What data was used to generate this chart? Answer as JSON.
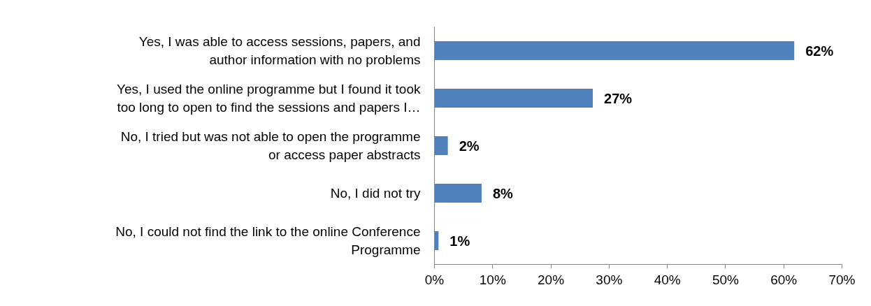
{
  "chart_data": {
    "type": "bar",
    "orientation": "horizontal",
    "categories": [
      "Yes, I was able to access sessions, papers, and\nauthor information with no problems",
      "Yes, I used the online programme but I found it took\ntoo long to open to find the sessions and papers I…",
      "No, I tried but was not able to open the programme\nor access paper abstracts",
      "No, I did not try",
      "No, I could not find the link to the online Conference\nProgramme"
    ],
    "values": [
      61.8,
      27.2,
      2.3,
      8.1,
      0.7
    ],
    "value_labels": [
      "62%",
      "27%",
      "2%",
      "8%",
      "1%"
    ],
    "color": "#4f81bd",
    "xlim": [
      0,
      70
    ],
    "xticks": [
      {
        "value": 0,
        "label": "0%"
      },
      {
        "value": 10,
        "label": "10%"
      },
      {
        "value": 20,
        "label": "20%"
      },
      {
        "value": 30,
        "label": "30%"
      },
      {
        "value": 40,
        "label": "40%"
      },
      {
        "value": 50,
        "label": "50%"
      },
      {
        "value": 60,
        "label": "60%"
      },
      {
        "value": 70,
        "label": "70%"
      }
    ],
    "grid": false
  }
}
